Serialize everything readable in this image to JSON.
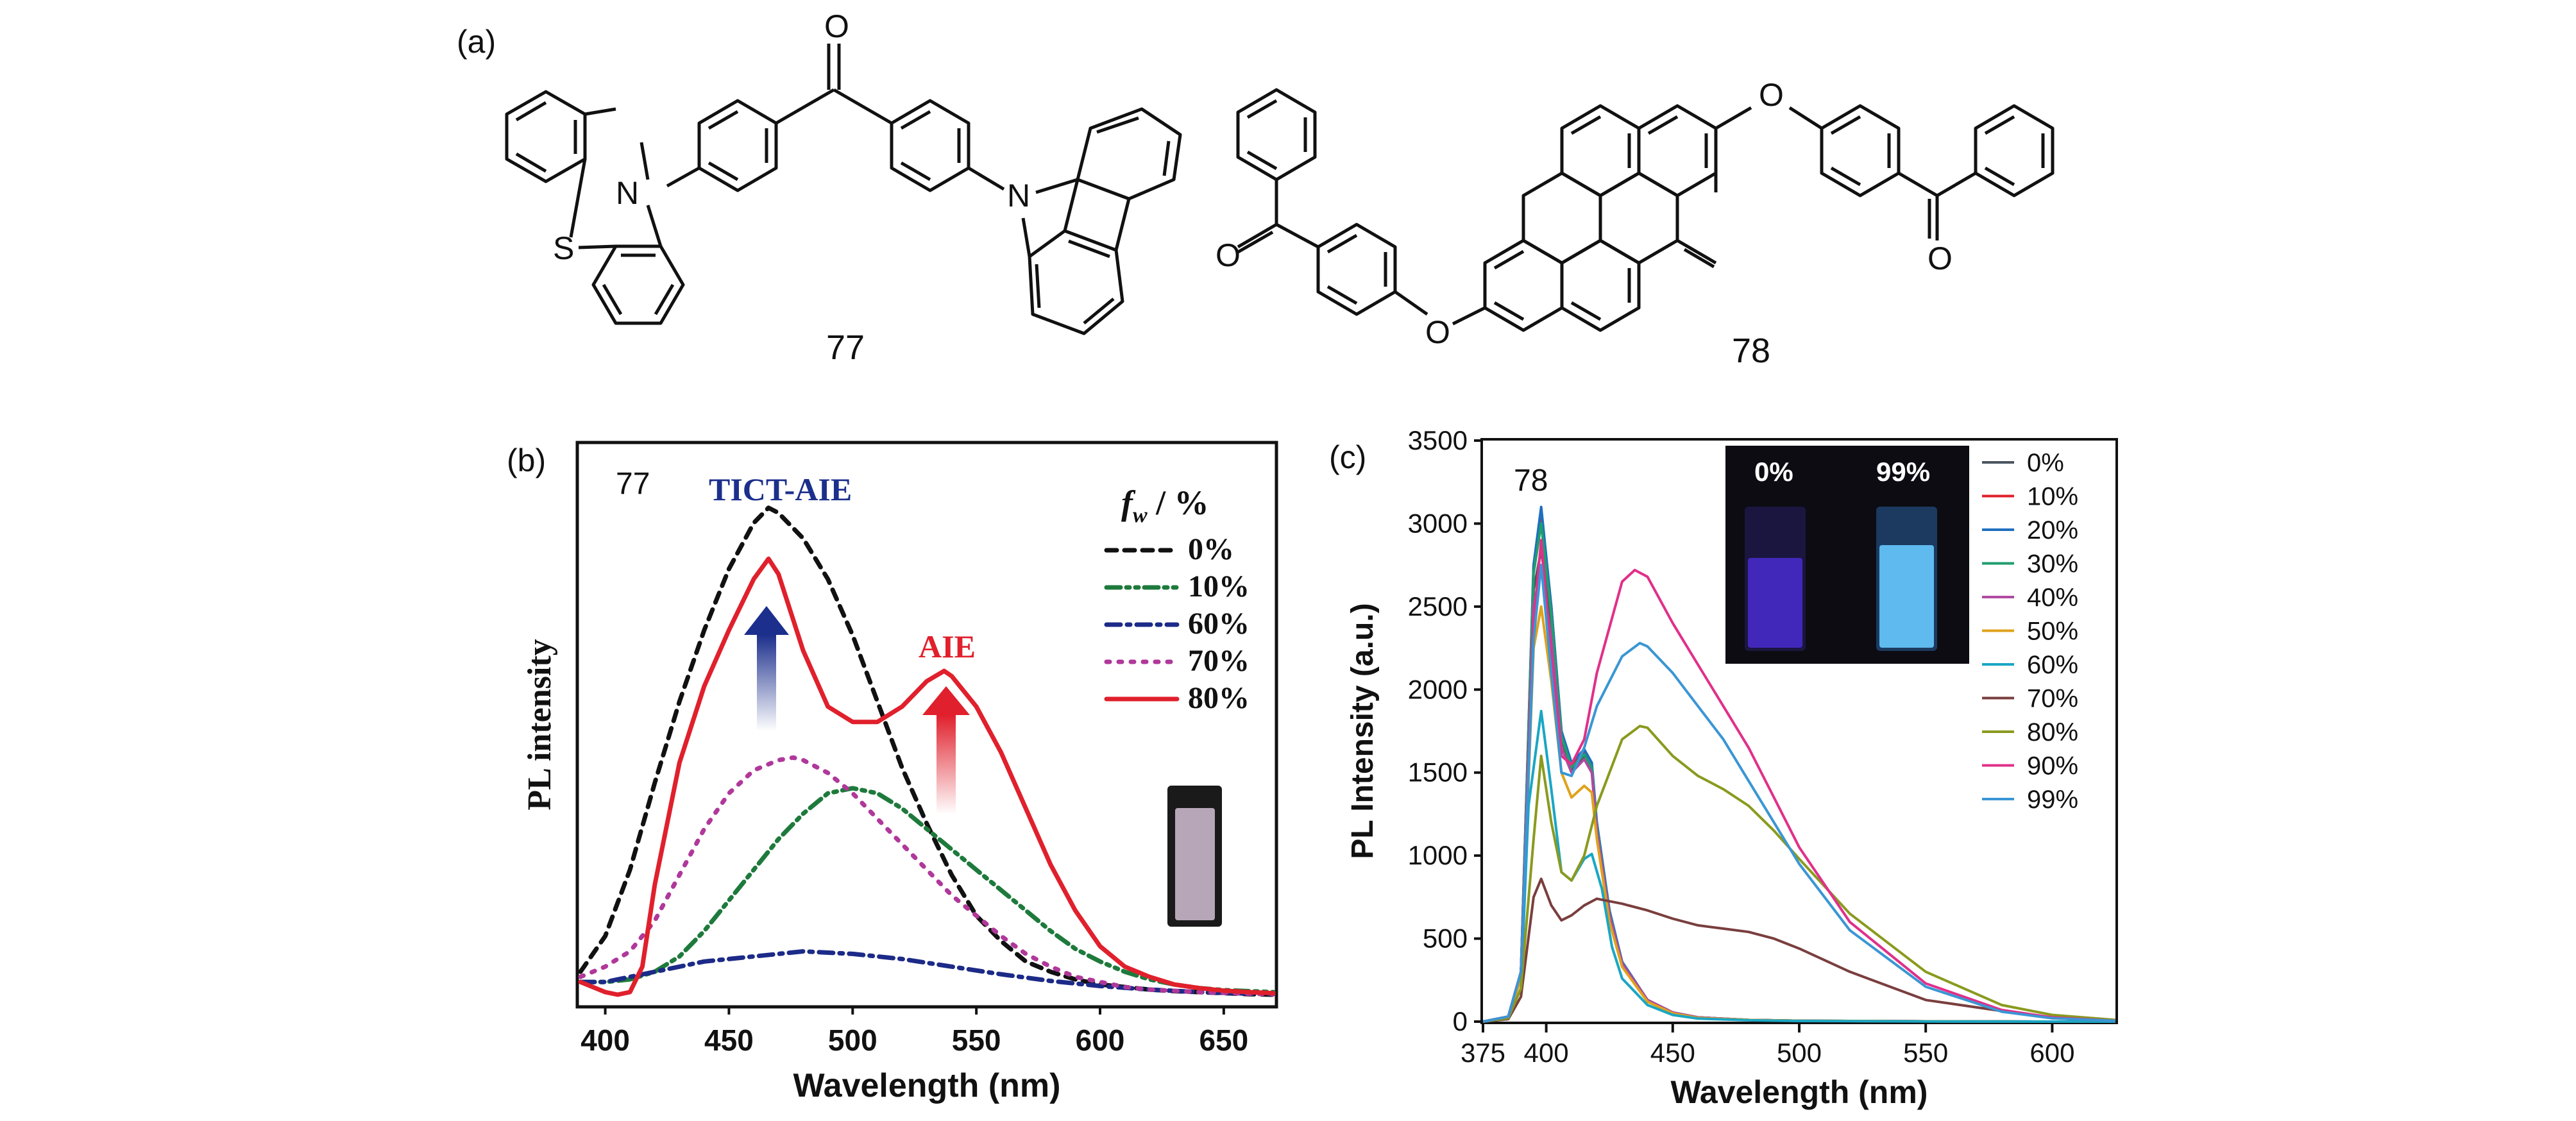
{
  "panel_labels": {
    "a": "(a)",
    "b": "(b)",
    "c": "(c)"
  },
  "compounds": {
    "c77": {
      "label": "77",
      "atoms": {
        "N1": "N",
        "S": "S",
        "O": "O",
        "N2": "N"
      }
    },
    "c78": {
      "label": "78",
      "atoms": {
        "O_top": "O",
        "O_left": "O",
        "O_mid": "O",
        "O_right": "O"
      }
    }
  },
  "chart_data": [
    {
      "type": "line",
      "panel": "(b)",
      "sample_label": "77",
      "xlabel": "Wavelength (nm)",
      "ylabel": "PL intensity",
      "xlim": [
        390,
        670
      ],
      "ylim": [
        0,
        100
      ],
      "x_ticks": [
        400,
        450,
        500,
        550,
        600,
        650
      ],
      "y_ticks_shown": false,
      "legend_title": "f_w / %",
      "legend_title_parts": {
        "f": "f",
        "sub": "w",
        "rest": " / %"
      },
      "legend_position": "top-right",
      "annotations": {
        "tict": {
          "text": "TICT-AIE",
          "color": "#1c2f8c"
        },
        "aie": {
          "text": "AIE",
          "color": "#e0202c"
        }
      },
      "inset": "photo of vial",
      "series": [
        {
          "name": "0%",
          "color": "#111111",
          "dash": "dashed",
          "x": [
            390,
            400,
            410,
            420,
            430,
            440,
            450,
            460,
            466,
            470,
            480,
            490,
            500,
            510,
            520,
            530,
            540,
            550,
            560,
            570,
            580,
            590,
            600,
            610,
            620,
            630,
            640,
            650,
            660,
            670
          ],
          "y": [
            5,
            12,
            25,
            42,
            58,
            72,
            84,
            93,
            96,
            95,
            90,
            82,
            71,
            58,
            45,
            34,
            24,
            16,
            11,
            7,
            5,
            3.5,
            2.5,
            2,
            1.5,
            1.2,
            1,
            0.8,
            0.6,
            0.5
          ]
        },
        {
          "name": "10%",
          "color": "#1e7a3c",
          "dash": "dashdotdot",
          "x": [
            390,
            400,
            410,
            420,
            430,
            440,
            450,
            460,
            470,
            480,
            490,
            500,
            510,
            520,
            530,
            540,
            550,
            560,
            570,
            580,
            590,
            600,
            610,
            620,
            630,
            640,
            650,
            660,
            670
          ],
          "y": [
            3,
            3,
            3.5,
            5,
            8,
            13,
            19,
            25,
            31,
            36,
            40,
            41,
            40,
            37,
            33,
            29,
            25,
            21,
            17,
            13,
            9.5,
            7,
            5,
            3.5,
            2.5,
            1.8,
            1.4,
            1.2,
            1
          ]
        },
        {
          "name": "60%",
          "color": "#1c2a88",
          "dash": "dashdot",
          "x": [
            390,
            400,
            420,
            440,
            460,
            480,
            500,
            520,
            540,
            560,
            580,
            600,
            620,
            640,
            660,
            670
          ],
          "y": [
            3,
            3,
            5,
            7,
            8,
            9,
            8.5,
            7.5,
            6,
            4.5,
            3.2,
            2.2,
            1.5,
            1,
            0.7,
            0.6
          ]
        },
        {
          "name": "70%",
          "color": "#b0389a",
          "dash": "dotted",
          "x": [
            390,
            400,
            410,
            420,
            430,
            440,
            450,
            460,
            470,
            476,
            480,
            490,
            500,
            510,
            520,
            530,
            540,
            550,
            560,
            570,
            580,
            590,
            600,
            610,
            620,
            640,
            660,
            670
          ],
          "y": [
            4,
            6,
            9,
            15,
            24,
            33,
            40,
            44.5,
            46.5,
            47,
            46.5,
            44,
            40,
            35,
            30,
            25,
            20,
            16,
            12,
            8.5,
            6,
            4,
            3,
            2,
            1.5,
            1,
            0.7,
            0.6
          ]
        },
        {
          "name": "80%",
          "color": "#e0202c",
          "dash": "solid",
          "x": [
            390,
            400,
            405,
            410,
            415,
            420,
            430,
            440,
            450,
            460,
            466,
            470,
            480,
            490,
            500,
            510,
            520,
            530,
            537,
            540,
            550,
            560,
            570,
            580,
            590,
            600,
            610,
            620,
            630,
            640,
            650,
            660,
            670
          ],
          "y": [
            3,
            1,
            0.5,
            1,
            6,
            22,
            46,
            61,
            72,
            82,
            86,
            83,
            68,
            57,
            54,
            54,
            57,
            62,
            64,
            63,
            57,
            48,
            37,
            26,
            17,
            10,
            6,
            4,
            2.5,
            1.8,
            1.3,
            1,
            0.8
          ]
        }
      ]
    },
    {
      "type": "line",
      "panel": "(c)",
      "sample_label": "78",
      "xlabel": "Wavelength (nm)",
      "ylabel": "PL  Intensity (a.u.)",
      "xlim": [
        375,
        625
      ],
      "ylim": [
        0,
        3500
      ],
      "x_ticks": [
        375,
        400,
        450,
        500,
        550,
        600
      ],
      "y_ticks": [
        0,
        500,
        1000,
        1500,
        2000,
        2500,
        3000,
        3500
      ],
      "legend_position": "right",
      "inset": {
        "type": "photo of vials",
        "labels": [
          "0%",
          "99%"
        ]
      },
      "series": [
        {
          "name": "0%",
          "color": "#4a5560",
          "x": [
            375,
            385,
            390,
            395,
            398,
            402,
            406,
            410,
            415,
            418,
            420,
            425,
            430,
            440,
            450,
            460,
            480,
            500,
            550,
            600,
            625
          ],
          "y": [
            0,
            30,
            300,
            2600,
            2840,
            2400,
            1700,
            1520,
            1600,
            1520,
            1150,
            650,
            350,
            130,
            55,
            25,
            10,
            5,
            2,
            0,
            0
          ]
        },
        {
          "name": "10%",
          "color": "#e0202c",
          "x": [
            375,
            385,
            390,
            395,
            398,
            402,
            406,
            410,
            415,
            418,
            420,
            425,
            430,
            440,
            450,
            460,
            480,
            500,
            550,
            600,
            625
          ],
          "y": [
            0,
            30,
            300,
            2750,
            3050,
            2500,
            1750,
            1540,
            1620,
            1540,
            1180,
            660,
            360,
            130,
            55,
            25,
            10,
            5,
            2,
            0,
            0
          ]
        },
        {
          "name": "20%",
          "color": "#1f6fbf",
          "x": [
            375,
            385,
            390,
            395,
            398,
            402,
            406,
            410,
            415,
            418,
            420,
            425,
            430,
            440,
            450,
            460,
            480,
            500,
            550,
            600,
            625
          ],
          "y": [
            0,
            30,
            300,
            2750,
            3100,
            2500,
            1750,
            1560,
            1640,
            1560,
            1200,
            670,
            360,
            130,
            55,
            25,
            10,
            5,
            2,
            0,
            0
          ]
        },
        {
          "name": "30%",
          "color": "#1f9e6e",
          "x": [
            375,
            385,
            390,
            395,
            398,
            402,
            406,
            410,
            415,
            418,
            420,
            425,
            430,
            440,
            450,
            460,
            480,
            500,
            550,
            600,
            625
          ],
          "y": [
            0,
            30,
            300,
            2700,
            3000,
            2450,
            1720,
            1530,
            1610,
            1530,
            1170,
            650,
            350,
            130,
            55,
            25,
            10,
            5,
            2,
            0,
            0
          ]
        },
        {
          "name": "40%",
          "color": "#b04aa0",
          "x": [
            375,
            385,
            390,
            395,
            398,
            402,
            406,
            410,
            415,
            418,
            420,
            425,
            430,
            440,
            450,
            460,
            480,
            500,
            550,
            600,
            625
          ],
          "y": [
            0,
            30,
            300,
            2500,
            2750,
            2300,
            1650,
            1500,
            1580,
            1500,
            1150,
            640,
            350,
            130,
            55,
            25,
            10,
            5,
            2,
            0,
            0
          ]
        },
        {
          "name": "50%",
          "color": "#e0a21c",
          "x": [
            375,
            385,
            390,
            395,
            398,
            402,
            406,
            410,
            415,
            418,
            420,
            425,
            430,
            440,
            450,
            460,
            480,
            500,
            550,
            600,
            625
          ],
          "y": [
            0,
            25,
            260,
            2250,
            2500,
            2050,
            1500,
            1350,
            1420,
            1380,
            1100,
            600,
            330,
            120,
            50,
            22,
            10,
            5,
            2,
            0,
            0
          ]
        },
        {
          "name": "60%",
          "color": "#1aa6c4",
          "x": [
            375,
            385,
            390,
            393,
            398,
            402,
            406,
            410,
            415,
            418,
            422,
            426,
            430,
            440,
            450,
            460,
            480,
            500,
            550,
            600,
            625
          ],
          "y": [
            0,
            20,
            200,
            1300,
            1870,
            1400,
            900,
            850,
            980,
            1010,
            800,
            450,
            260,
            100,
            40,
            18,
            8,
            4,
            1,
            0,
            0
          ]
        },
        {
          "name": "70%",
          "color": "#7a3e3e",
          "x": [
            375,
            385,
            390,
            395,
            398,
            402,
            406,
            410,
            415,
            420,
            430,
            440,
            450,
            460,
            470,
            480,
            490,
            500,
            520,
            550,
            600,
            625
          ],
          "y": [
            0,
            15,
            150,
            750,
            860,
            700,
            610,
            640,
            700,
            740,
            710,
            670,
            620,
            580,
            560,
            540,
            500,
            440,
            300,
            130,
            20,
            5
          ]
        },
        {
          "name": "80%",
          "color": "#8a9a1e",
          "x": [
            375,
            385,
            390,
            395,
            398,
            402,
            406,
            410,
            415,
            420,
            430,
            437,
            440,
            450,
            460,
            470,
            480,
            490,
            500,
            520,
            550,
            580,
            600,
            625
          ],
          "y": [
            0,
            20,
            200,
            1100,
            1600,
            1200,
            900,
            850,
            1000,
            1300,
            1700,
            1780,
            1770,
            1600,
            1480,
            1400,
            1300,
            1150,
            980,
            650,
            300,
            100,
            40,
            10
          ]
        },
        {
          "name": "90%",
          "color": "#e0308a",
          "x": [
            375,
            385,
            390,
            395,
            398,
            402,
            406,
            410,
            415,
            420,
            430,
            435,
            440,
            450,
            460,
            470,
            480,
            490,
            500,
            520,
            550,
            580,
            600,
            625
          ],
          "y": [
            0,
            30,
            300,
            2400,
            2900,
            2200,
            1600,
            1550,
            1700,
            2100,
            2650,
            2720,
            2680,
            2400,
            2150,
            1900,
            1650,
            1350,
            1050,
            600,
            230,
            70,
            25,
            5
          ]
        },
        {
          "name": "99%",
          "color": "#3a96d4",
          "x": [
            375,
            385,
            390,
            395,
            398,
            402,
            406,
            410,
            415,
            420,
            430,
            437,
            440,
            450,
            460,
            470,
            480,
            490,
            500,
            520,
            550,
            580,
            600,
            625
          ],
          "y": [
            0,
            30,
            300,
            2300,
            2750,
            2100,
            1500,
            1480,
            1650,
            1900,
            2200,
            2280,
            2260,
            2100,
            1900,
            1700,
            1450,
            1200,
            950,
            550,
            210,
            60,
            20,
            5
          ]
        }
      ]
    }
  ]
}
